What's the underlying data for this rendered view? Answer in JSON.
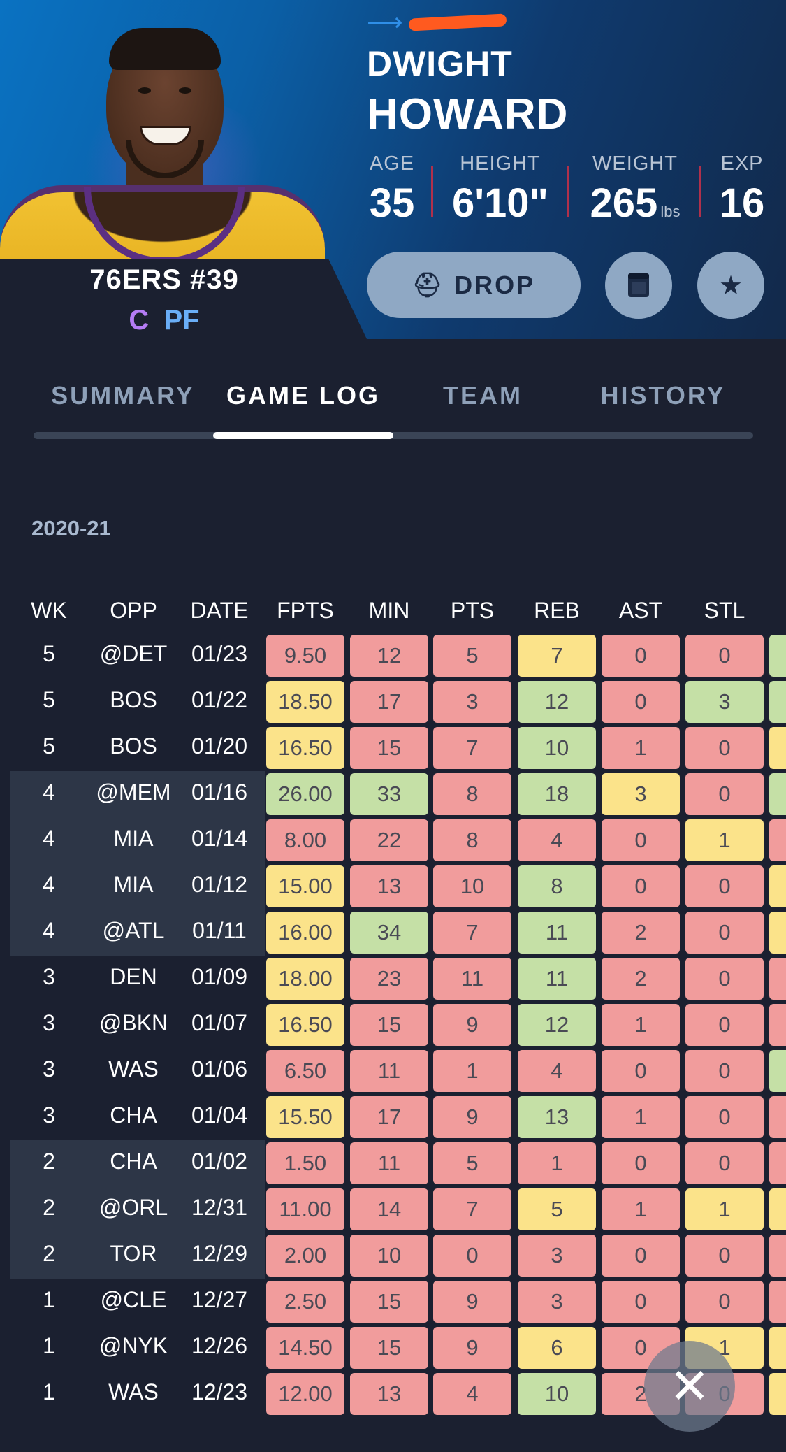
{
  "player": {
    "first_name": "DWIGHT",
    "last_name": "HOWARD",
    "team_line": "76ERS #39",
    "positions": [
      "C",
      "PF"
    ],
    "bio": [
      {
        "label": "AGE",
        "value": "35",
        "unit": ""
      },
      {
        "label": "HEIGHT",
        "value": "6'10\"",
        "unit": ""
      },
      {
        "label": "WEIGHT",
        "value": "265",
        "unit": "lbs"
      },
      {
        "label": "EXP",
        "value": "16",
        "unit": ""
      }
    ]
  },
  "actions": {
    "drop_label": "DROP",
    "drop_icon": "helmet-icon",
    "note_icon": "notepad-icon",
    "star_icon": "star-icon"
  },
  "tabs": [
    {
      "label": "SUMMARY",
      "active": false
    },
    {
      "label": "GAME LOG",
      "active": true
    },
    {
      "label": "TEAM",
      "active": false
    },
    {
      "label": "HISTORY",
      "active": false
    }
  ],
  "season": "2020-21",
  "game_log": {
    "columns": [
      "WK",
      "OPP",
      "DATE",
      "FPTS",
      "MIN",
      "PTS",
      "REB",
      "AST",
      "STL"
    ],
    "rows": [
      {
        "wk": "5",
        "opp": "@DET",
        "date": "01/23",
        "stats": [
          "9.50",
          "12",
          "5",
          "7",
          "0",
          "0"
        ],
        "colors": [
          "red",
          "red",
          "red",
          "yellow",
          "red",
          "red",
          "green"
        ],
        "band": false
      },
      {
        "wk": "5",
        "opp": "BOS",
        "date": "01/22",
        "stats": [
          "18.50",
          "17",
          "3",
          "12",
          "0",
          "3"
        ],
        "colors": [
          "yellow",
          "red",
          "red",
          "green",
          "red",
          "green",
          "green"
        ],
        "band": false
      },
      {
        "wk": "5",
        "opp": "BOS",
        "date": "01/20",
        "stats": [
          "16.50",
          "15",
          "7",
          "10",
          "1",
          "0"
        ],
        "colors": [
          "yellow",
          "red",
          "red",
          "green",
          "red",
          "red",
          "yellow"
        ],
        "band": false
      },
      {
        "wk": "4",
        "opp": "@MEM",
        "date": "01/16",
        "stats": [
          "26.00",
          "33",
          "8",
          "18",
          "3",
          "0"
        ],
        "colors": [
          "green",
          "green",
          "red",
          "green",
          "yellow",
          "red",
          "green"
        ],
        "band": true
      },
      {
        "wk": "4",
        "opp": "MIA",
        "date": "01/14",
        "stats": [
          "8.00",
          "22",
          "8",
          "4",
          "0",
          "1"
        ],
        "colors": [
          "red",
          "red",
          "red",
          "red",
          "red",
          "yellow",
          "red"
        ],
        "band": true
      },
      {
        "wk": "4",
        "opp": "MIA",
        "date": "01/12",
        "stats": [
          "15.00",
          "13",
          "10",
          "8",
          "0",
          "0"
        ],
        "colors": [
          "yellow",
          "red",
          "red",
          "green",
          "red",
          "red",
          "yellow"
        ],
        "band": true
      },
      {
        "wk": "4",
        "opp": "@ATL",
        "date": "01/11",
        "stats": [
          "16.00",
          "34",
          "7",
          "11",
          "2",
          "0"
        ],
        "colors": [
          "yellow",
          "green",
          "red",
          "green",
          "red",
          "red",
          "yellow"
        ],
        "band": true
      },
      {
        "wk": "3",
        "opp": "DEN",
        "date": "01/09",
        "stats": [
          "18.00",
          "23",
          "11",
          "11",
          "2",
          "0"
        ],
        "colors": [
          "yellow",
          "red",
          "red",
          "green",
          "red",
          "red",
          "red"
        ],
        "band": false
      },
      {
        "wk": "3",
        "opp": "@BKN",
        "date": "01/07",
        "stats": [
          "16.50",
          "15",
          "9",
          "12",
          "1",
          "0"
        ],
        "colors": [
          "yellow",
          "red",
          "red",
          "green",
          "red",
          "red",
          "red"
        ],
        "band": false
      },
      {
        "wk": "3",
        "opp": "WAS",
        "date": "01/06",
        "stats": [
          "6.50",
          "11",
          "1",
          "4",
          "0",
          "0"
        ],
        "colors": [
          "red",
          "red",
          "red",
          "red",
          "red",
          "red",
          "green"
        ],
        "band": false
      },
      {
        "wk": "3",
        "opp": "CHA",
        "date": "01/04",
        "stats": [
          "15.50",
          "17",
          "9",
          "13",
          "1",
          "0"
        ],
        "colors": [
          "yellow",
          "red",
          "red",
          "green",
          "red",
          "red",
          "red"
        ],
        "band": false
      },
      {
        "wk": "2",
        "opp": "CHA",
        "date": "01/02",
        "stats": [
          "1.50",
          "11",
          "5",
          "1",
          "0",
          "0"
        ],
        "colors": [
          "red",
          "red",
          "red",
          "red",
          "red",
          "red",
          "red"
        ],
        "band": true
      },
      {
        "wk": "2",
        "opp": "@ORL",
        "date": "12/31",
        "stats": [
          "11.00",
          "14",
          "7",
          "5",
          "1",
          "1"
        ],
        "colors": [
          "red",
          "red",
          "red",
          "yellow",
          "red",
          "yellow",
          "yellow"
        ],
        "band": true
      },
      {
        "wk": "2",
        "opp": "TOR",
        "date": "12/29",
        "stats": [
          "2.00",
          "10",
          "0",
          "3",
          "0",
          "0"
        ],
        "colors": [
          "red",
          "red",
          "red",
          "red",
          "red",
          "red",
          "red"
        ],
        "band": true
      },
      {
        "wk": "1",
        "opp": "@CLE",
        "date": "12/27",
        "stats": [
          "2.50",
          "15",
          "9",
          "3",
          "0",
          "0"
        ],
        "colors": [
          "red",
          "red",
          "red",
          "red",
          "red",
          "red",
          "red"
        ],
        "band": false
      },
      {
        "wk": "1",
        "opp": "@NYK",
        "date": "12/26",
        "stats": [
          "14.50",
          "15",
          "9",
          "6",
          "0",
          "1"
        ],
        "colors": [
          "red",
          "red",
          "red",
          "yellow",
          "red",
          "yellow",
          "yellow"
        ],
        "band": false
      },
      {
        "wk": "1",
        "opp": "WAS",
        "date": "12/23",
        "stats": [
          "12.00",
          "13",
          "4",
          "10",
          "2",
          "0"
        ],
        "colors": [
          "red",
          "red",
          "red",
          "green",
          "red",
          "red",
          "yellow"
        ],
        "band": false
      }
    ]
  },
  "close_icon": "close-icon"
}
